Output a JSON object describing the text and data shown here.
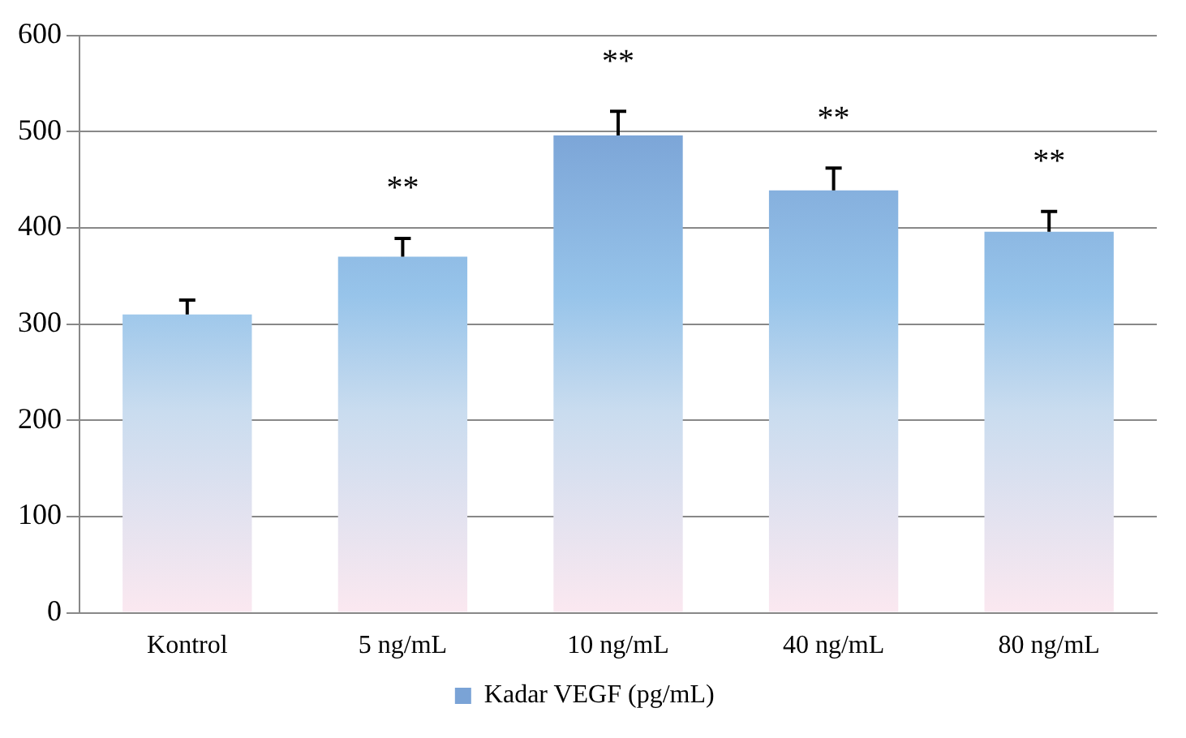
{
  "chart_data": {
    "type": "bar",
    "categories": [
      "Kontrol",
      "5 ng/mL",
      "10 ng/mL",
      "40 ng/mL",
      "80 ng/mL"
    ],
    "series": [
      {
        "name": "Kadar VEGF (pg/mL)",
        "color": "#7aa3d6",
        "values": [
          310,
          370,
          496,
          439,
          396
        ],
        "errors": [
          15,
          19,
          25,
          23,
          21
        ]
      }
    ],
    "ylim": [
      0,
      600
    ],
    "yticks": [
      0,
      100,
      200,
      300,
      400,
      500,
      600
    ],
    "grid": "y",
    "legend": "bottom",
    "annotations": [
      {
        "text": "**",
        "x": "5 ng/mL",
        "y": 370
      },
      {
        "text": "**",
        "x": "10 ng/mL",
        "y": 496
      },
      {
        "text": "**",
        "x": "40 ng/mL",
        "y": 439
      },
      {
        "text": "**",
        "x": "80 ng/mL",
        "y": 396
      }
    ]
  }
}
